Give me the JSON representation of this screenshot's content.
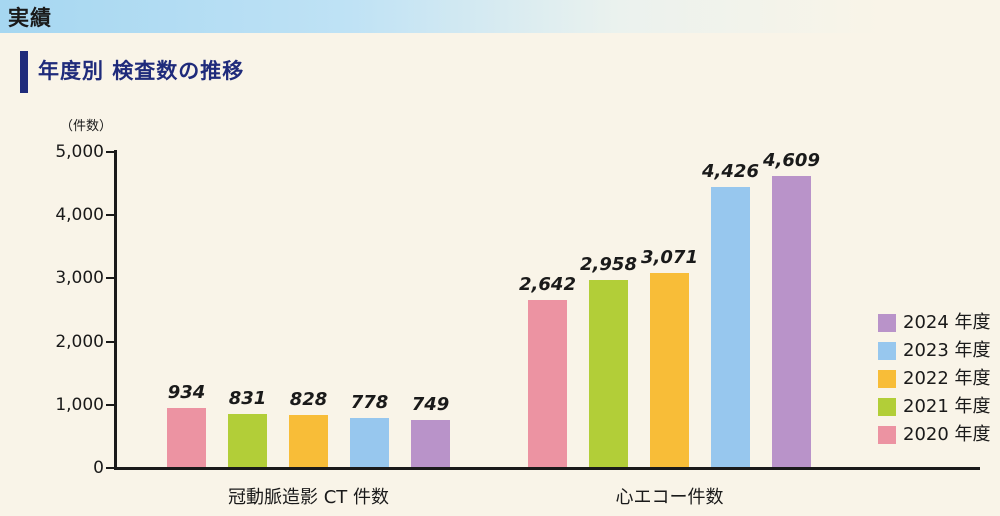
{
  "banner": {
    "title": "実績"
  },
  "section": {
    "title": "年度別 検査数の推移"
  },
  "chart_data": {
    "type": "bar",
    "title": "年度別 検査数の推移",
    "ylabel": "（件数）",
    "xlabel": "",
    "ylim": [
      0,
      5000
    ],
    "ytick_values": [
      0,
      1000,
      2000,
      3000,
      4000,
      5000
    ],
    "ytick_labels": [
      "0",
      "1,000",
      "2,000",
      "3,000",
      "4,000",
      "5,000"
    ],
    "grid": false,
    "legend_position": "right",
    "categories": [
      "冠動脈造影 CT 件数",
      "心エコー件数"
    ],
    "series": [
      {
        "name": "2020 年度",
        "color": "#ec93a2",
        "values": [
          934,
          2642
        ],
        "labels": [
          "934",
          "2,642"
        ]
      },
      {
        "name": "2021 年度",
        "color": "#b2ce38",
        "values": [
          831,
          2958
        ],
        "labels": [
          "831",
          "2,958"
        ]
      },
      {
        "name": "2022 年度",
        "color": "#f8bd38",
        "values": [
          828,
          3071
        ],
        "labels": [
          "828",
          "3,071"
        ]
      },
      {
        "name": "2023 年度",
        "color": "#97c7ee",
        "values": [
          778,
          4426
        ],
        "labels": [
          "778",
          "4,426"
        ]
      },
      {
        "name": "2024 年度",
        "color": "#b993c9",
        "values": [
          749,
          4609
        ],
        "labels": [
          "749",
          "4,609"
        ]
      }
    ],
    "legend_order_top_to_bottom": [
      "2024 年度",
      "2023 年度",
      "2022 年度",
      "2021 年度",
      "2020 年度"
    ]
  },
  "colors": {
    "background": "#f9f4e8",
    "banner_gradient_left": "#a6d7f1",
    "banner_gradient_right": "#f9f4e8",
    "title_navy": "#1f2b7b",
    "axis": "#1a1a1a",
    "text": "#1a1a1a"
  }
}
